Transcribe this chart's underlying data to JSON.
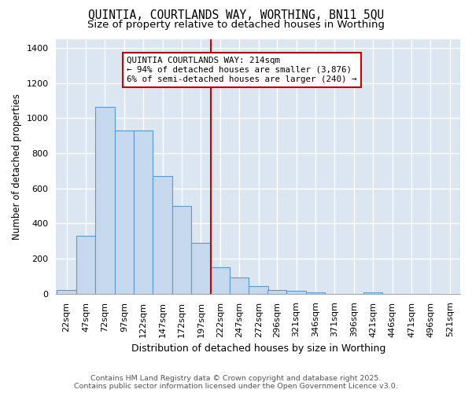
{
  "title": "QUINTIA, COURTLANDS WAY, WORTHING, BN11 5QU",
  "subtitle": "Size of property relative to detached houses in Worthing",
  "xlabel": "Distribution of detached houses by size in Worthing",
  "ylabel": "Number of detached properties",
  "bins": [
    22,
    47,
    72,
    97,
    122,
    147,
    172,
    197,
    222,
    247,
    272,
    296,
    321,
    346,
    371,
    396,
    421,
    446,
    471,
    496,
    521
  ],
  "values": [
    20,
    330,
    1065,
    930,
    930,
    670,
    500,
    290,
    150,
    95,
    45,
    20,
    15,
    10,
    0,
    0,
    10,
    0,
    0,
    0
  ],
  "bar_color": "#c5d8ed",
  "bar_edge_color": "#5b9bd5",
  "vline_x": 222,
  "vline_color": "#cc0000",
  "annotation_text": "QUINTIA COURTLANDS WAY: 214sqm\n← 94% of detached houses are smaller (3,876)\n6% of semi-detached houses are larger (240) →",
  "annotation_box_color": "#cc0000",
  "annotation_bg": "#ffffff",
  "ylim": [
    0,
    1450
  ],
  "yticks": [
    0,
    200,
    400,
    600,
    800,
    1000,
    1200,
    1400
  ],
  "background_color": "#dce6f1",
  "grid_color": "#ffffff",
  "fig_bg": "#ffffff",
  "footer": "Contains HM Land Registry data © Crown copyright and database right 2025.\nContains public sector information licensed under the Open Government Licence v3.0.",
  "title_fontsize": 10.5,
  "subtitle_fontsize": 9.5,
  "tick_label_fontsize": 8,
  "ylabel_fontsize": 8.5,
  "xlabel_fontsize": 9
}
